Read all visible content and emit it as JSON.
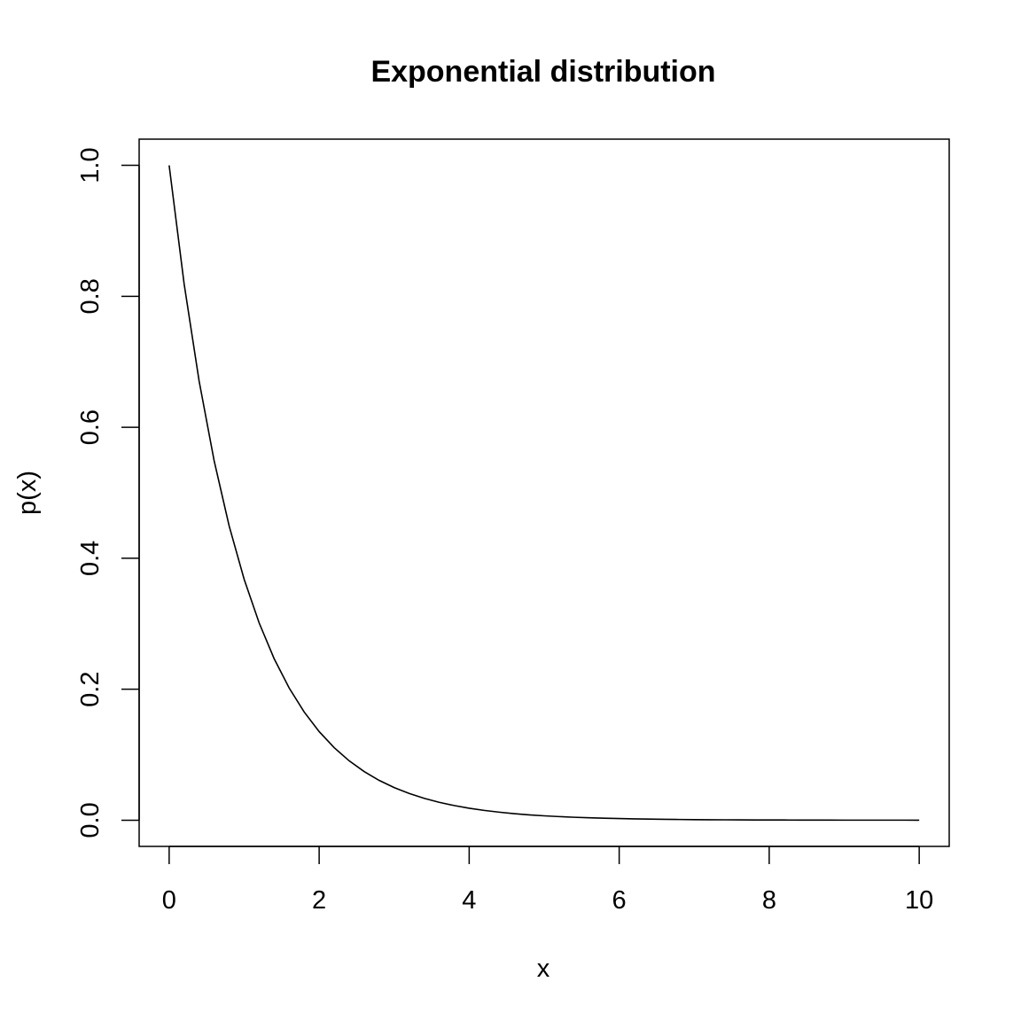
{
  "chart_data": {
    "type": "line",
    "title": "Exponential distribution",
    "xlabel": "x",
    "ylabel": "p(x)",
    "xlim": [
      -0.4,
      10.4
    ],
    "ylim": [
      -0.04,
      1.04
    ],
    "x_ticks": [
      0,
      2,
      4,
      6,
      8,
      10
    ],
    "x_tick_labels": [
      "0",
      "2",
      "4",
      "6",
      "8",
      "10"
    ],
    "y_ticks": [
      0.0,
      0.2,
      0.4,
      0.6,
      0.8,
      1.0
    ],
    "y_tick_labels": [
      "0.0",
      "0.2",
      "0.4",
      "0.6",
      "0.8",
      "1.0"
    ],
    "grid": false,
    "legend": "none",
    "line_color": "#000000",
    "series": [
      {
        "x": [
          0,
          0.2,
          0.4,
          0.6,
          0.8,
          1.0,
          1.2,
          1.4,
          1.6,
          1.8,
          2.0,
          2.2,
          2.4,
          2.6,
          2.8,
          3.0,
          3.2,
          3.4,
          3.6,
          3.8,
          4.0,
          4.2,
          4.4,
          4.6,
          4.8,
          5.0,
          5.2,
          5.4,
          5.6,
          5.8,
          6.0,
          6.2,
          6.4,
          6.6,
          6.8,
          7.0,
          7.2,
          7.4,
          7.6,
          7.8,
          8.0,
          8.2,
          8.4,
          8.6,
          8.8,
          9.0,
          9.2,
          9.4,
          9.6,
          9.8,
          10.0
        ],
        "y": [
          1.0,
          0.8187,
          0.6703,
          0.5488,
          0.4493,
          0.3679,
          0.3012,
          0.2466,
          0.2019,
          0.1653,
          0.1353,
          0.1108,
          0.0907,
          0.0743,
          0.0608,
          0.0498,
          0.0408,
          0.0334,
          0.0273,
          0.0224,
          0.0183,
          0.015,
          0.0123,
          0.01,
          0.0082,
          0.0067,
          0.0055,
          0.0045,
          0.0037,
          0.003,
          0.0025,
          0.002,
          0.0017,
          0.0014,
          0.0011,
          0.0009,
          0.0007,
          0.0006,
          0.0005,
          0.0004,
          0.0003,
          0.0003,
          0.0002,
          0.0002,
          0.0002,
          0.0001,
          0.0001,
          0.0001,
          0.0001,
          0.0001,
          0.0
        ]
      }
    ]
  }
}
